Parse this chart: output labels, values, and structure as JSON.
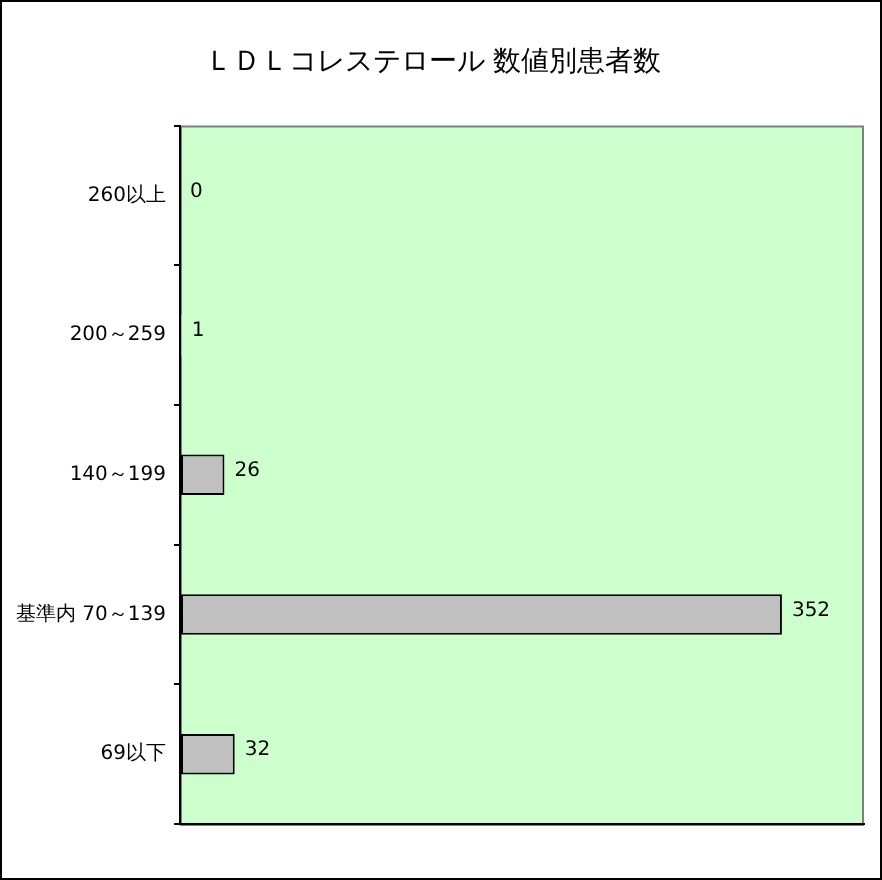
{
  "chart_data": {
    "type": "bar",
    "title": "ＬＤＬコレステロール 数値別患者数",
    "orientation": "horizontal",
    "categories": [
      "260以上",
      "200～259",
      "140～199",
      "基準内 70～139",
      "69以下"
    ],
    "values": [
      0,
      1,
      26,
      352,
      32
    ],
    "color": "#c0c0c0",
    "data_labels": true,
    "legend": false,
    "grid": false,
    "tick_labels": "y"
  }
}
